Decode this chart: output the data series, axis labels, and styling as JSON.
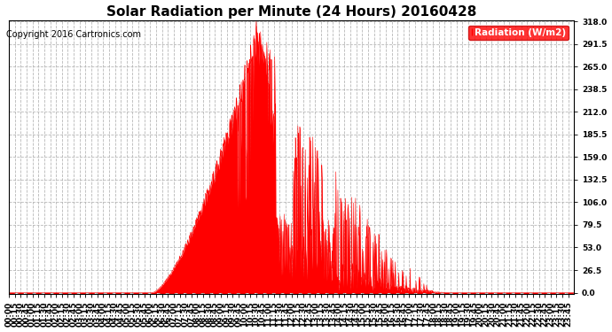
{
  "title": "Solar Radiation per Minute (24 Hours) 20160428",
  "copyright": "Copyright 2016 Cartronics.com",
  "legend_label": "Radiation (W/m2)",
  "fill_color": "#FF0000",
  "line_color": "#FF0000",
  "background_color": "#FFFFFF",
  "plot_bg_color": "#FFFFFF",
  "grid_color": "#B0B0B0",
  "legend_bg": "#FF0000",
  "legend_text_color": "#FFFFFF",
  "yticks": [
    0.0,
    26.5,
    53.0,
    79.5,
    106.0,
    132.5,
    159.0,
    185.5,
    212.0,
    238.5,
    265.0,
    291.5,
    318.0
  ],
  "ymax": 318.0,
  "ymin": 0.0,
  "total_minutes": 1440,
  "xtick_interval": 15,
  "title_fontsize": 11,
  "axis_fontsize": 6.5,
  "copyright_fontsize": 7
}
